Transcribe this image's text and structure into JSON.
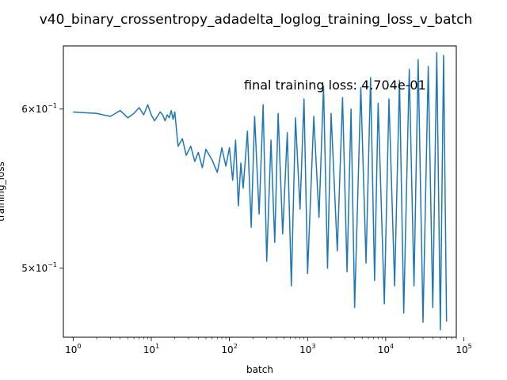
{
  "chart_data": {
    "type": "line",
    "title": "v40_binary_crossentropy_adadelta_loglog_training_loss_v_batch",
    "xlabel": "batch",
    "ylabel": "training_loss",
    "xscale": "log",
    "yscale": "log",
    "xlim": [
      0.75,
      80000
    ],
    "ylim": [
      0.462,
      0.645
    ],
    "annotation": "final training loss: 4.704e-01",
    "x_ticks": [
      {
        "value": 1,
        "base": "10",
        "exp": "0"
      },
      {
        "value": 10,
        "base": "10",
        "exp": "1"
      },
      {
        "value": 100,
        "base": "10",
        "exp": "2"
      },
      {
        "value": 1000,
        "base": "10",
        "exp": "3"
      },
      {
        "value": 10000,
        "base": "10",
        "exp": "4"
      },
      {
        "value": 100000,
        "base": "10",
        "exp": "5"
      }
    ],
    "y_ticks": [
      {
        "value": 0.5,
        "mant": "5",
        "base": "10",
        "exp": "−1"
      },
      {
        "value": 0.6,
        "mant": "6",
        "base": "10",
        "exp": "−1"
      }
    ],
    "line_color": "#1f77b4",
    "series": [
      {
        "x": [
          1,
          2,
          3,
          4,
          5,
          6,
          7,
          8,
          9,
          10,
          11,
          12,
          13,
          14,
          15,
          16,
          17,
          18,
          19,
          20,
          22,
          25,
          28,
          32,
          36,
          40,
          45,
          50,
          60,
          70,
          80,
          90,
          100,
          110,
          120,
          130,
          140,
          150,
          170,
          190,
          210,
          240,
          270,
          300,
          340,
          380,
          420,
          480,
          550,
          620,
          700,
          800,
          900,
          1000,
          1200,
          1400,
          1600,
          1800,
          2000,
          2400,
          2800,
          3200,
          3600,
          4000,
          4800,
          5600,
          6400,
          7200,
          8000,
          9600,
          11000,
          13000,
          15000,
          17000,
          20000,
          23000,
          26000,
          30000,
          35000,
          40000,
          45000,
          50000,
          55000,
          60000
        ],
        "y": [
          0.598,
          0.597,
          0.595,
          0.599,
          0.594,
          0.597,
          0.601,
          0.596,
          0.603,
          0.596,
          0.592,
          0.595,
          0.598,
          0.596,
          0.592,
          0.596,
          0.594,
          0.599,
          0.593,
          0.598,
          0.575,
          0.58,
          0.569,
          0.575,
          0.565,
          0.571,
          0.561,
          0.573,
          0.566,
          0.558,
          0.574,
          0.562,
          0.574,
          0.553,
          0.579,
          0.537,
          0.564,
          0.548,
          0.585,
          0.524,
          0.595,
          0.532,
          0.603,
          0.504,
          0.579,
          0.515,
          0.597,
          0.52,
          0.584,
          0.49,
          0.594,
          0.535,
          0.607,
          0.497,
          0.595,
          0.53,
          0.616,
          0.5,
          0.597,
          0.51,
          0.608,
          0.498,
          0.6,
          0.478,
          0.615,
          0.503,
          0.622,
          0.493,
          0.604,
          0.48,
          0.607,
          0.49,
          0.62,
          0.475,
          0.628,
          0.49,
          0.635,
          0.47,
          0.63,
          0.478,
          0.64,
          0.466,
          0.638,
          0.4704
        ]
      }
    ]
  }
}
